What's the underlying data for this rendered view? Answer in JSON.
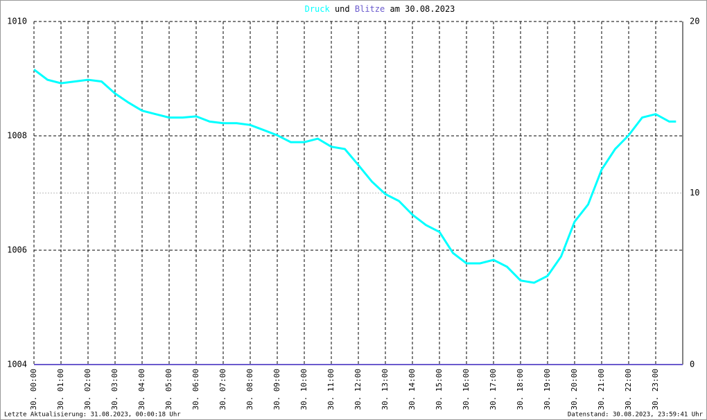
{
  "chart_data": {
    "type": "line",
    "title": {
      "connector": "und",
      "date": "am 30.08.2023"
    },
    "footer_left": "Letzte Aktualisierung: 31.08.2023, 00:00:18 Uhr",
    "footer_right": "Datenstand: 30.08.2023, 23:59:41 Uhr",
    "xlim": [
      0,
      24
    ],
    "xticks": [
      {
        "value": 0,
        "label": "30. 00:00"
      },
      {
        "value": 1,
        "label": "30. 01:00"
      },
      {
        "value": 2,
        "label": "30. 02:00"
      },
      {
        "value": 3,
        "label": "30. 03:00"
      },
      {
        "value": 4,
        "label": "30. 04:00"
      },
      {
        "value": 5,
        "label": "30. 05:00"
      },
      {
        "value": 6,
        "label": "30. 06:00"
      },
      {
        "value": 7,
        "label": "30. 07:00"
      },
      {
        "value": 8,
        "label": "30. 08:00"
      },
      {
        "value": 9,
        "label": "30. 09:00"
      },
      {
        "value": 10,
        "label": "30. 10:00"
      },
      {
        "value": 11,
        "label": "30. 11:00"
      },
      {
        "value": 12,
        "label": "30. 12:00"
      },
      {
        "value": 13,
        "label": "30. 13:00"
      },
      {
        "value": 14,
        "label": "30. 14:00"
      },
      {
        "value": 15,
        "label": "30. 15:00"
      },
      {
        "value": 16,
        "label": "30. 16:00"
      },
      {
        "value": 17,
        "label": "30. 17:00"
      },
      {
        "value": 18,
        "label": "30. 18:00"
      },
      {
        "value": 19,
        "label": "30. 19:00"
      },
      {
        "value": 20,
        "label": "30. 20:00"
      },
      {
        "value": 21,
        "label": "30. 21:00"
      },
      {
        "value": 22,
        "label": "30. 22:00"
      },
      {
        "value": 23,
        "label": "30. 23:00"
      }
    ],
    "ylim": [
      1004,
      1010
    ],
    "yticks": [
      1004,
      1006,
      1008,
      1010
    ],
    "y2lim": [
      0,
      20
    ],
    "y2ticks": [
      0,
      10,
      20
    ],
    "grid": true,
    "series": [
      {
        "name": "Druck",
        "color": "#00ffff",
        "x": [
          0,
          0.5,
          1,
          1.5,
          2,
          2.5,
          3,
          3.5,
          4,
          4.5,
          5,
          5.5,
          6,
          6.5,
          7,
          7.5,
          8,
          8.5,
          9,
          9.5,
          10,
          10.5,
          11,
          11.5,
          12,
          12.5,
          13,
          13.5,
          14,
          14.5,
          15,
          15.5,
          16,
          16.5,
          17,
          17.5,
          18,
          18.5,
          19,
          19.5,
          20,
          20.5,
          21,
          21.5,
          22,
          22.5,
          23,
          23.5,
          23.75
        ],
        "values": [
          1009.16,
          1008.98,
          1008.92,
          1008.95,
          1008.98,
          1008.95,
          1008.74,
          1008.58,
          1008.44,
          1008.38,
          1008.32,
          1008.32,
          1008.34,
          1008.25,
          1008.22,
          1008.22,
          1008.19,
          1008.1,
          1008.01,
          1007.89,
          1007.89,
          1007.95,
          1007.81,
          1007.77,
          1007.49,
          1007.2,
          1006.98,
          1006.86,
          1006.62,
          1006.44,
          1006.32,
          1005.95,
          1005.77,
          1005.77,
          1005.83,
          1005.71,
          1005.47,
          1005.43,
          1005.55,
          1005.89,
          1006.5,
          1006.8,
          1007.41,
          1007.77,
          1008.01,
          1008.32,
          1008.38,
          1008.25,
          1008.25
        ]
      },
      {
        "name": "Blitze",
        "color": "#6a5acd",
        "axis": "y2",
        "x": [
          0,
          24
        ],
        "values": [
          0,
          0
        ]
      }
    ]
  }
}
